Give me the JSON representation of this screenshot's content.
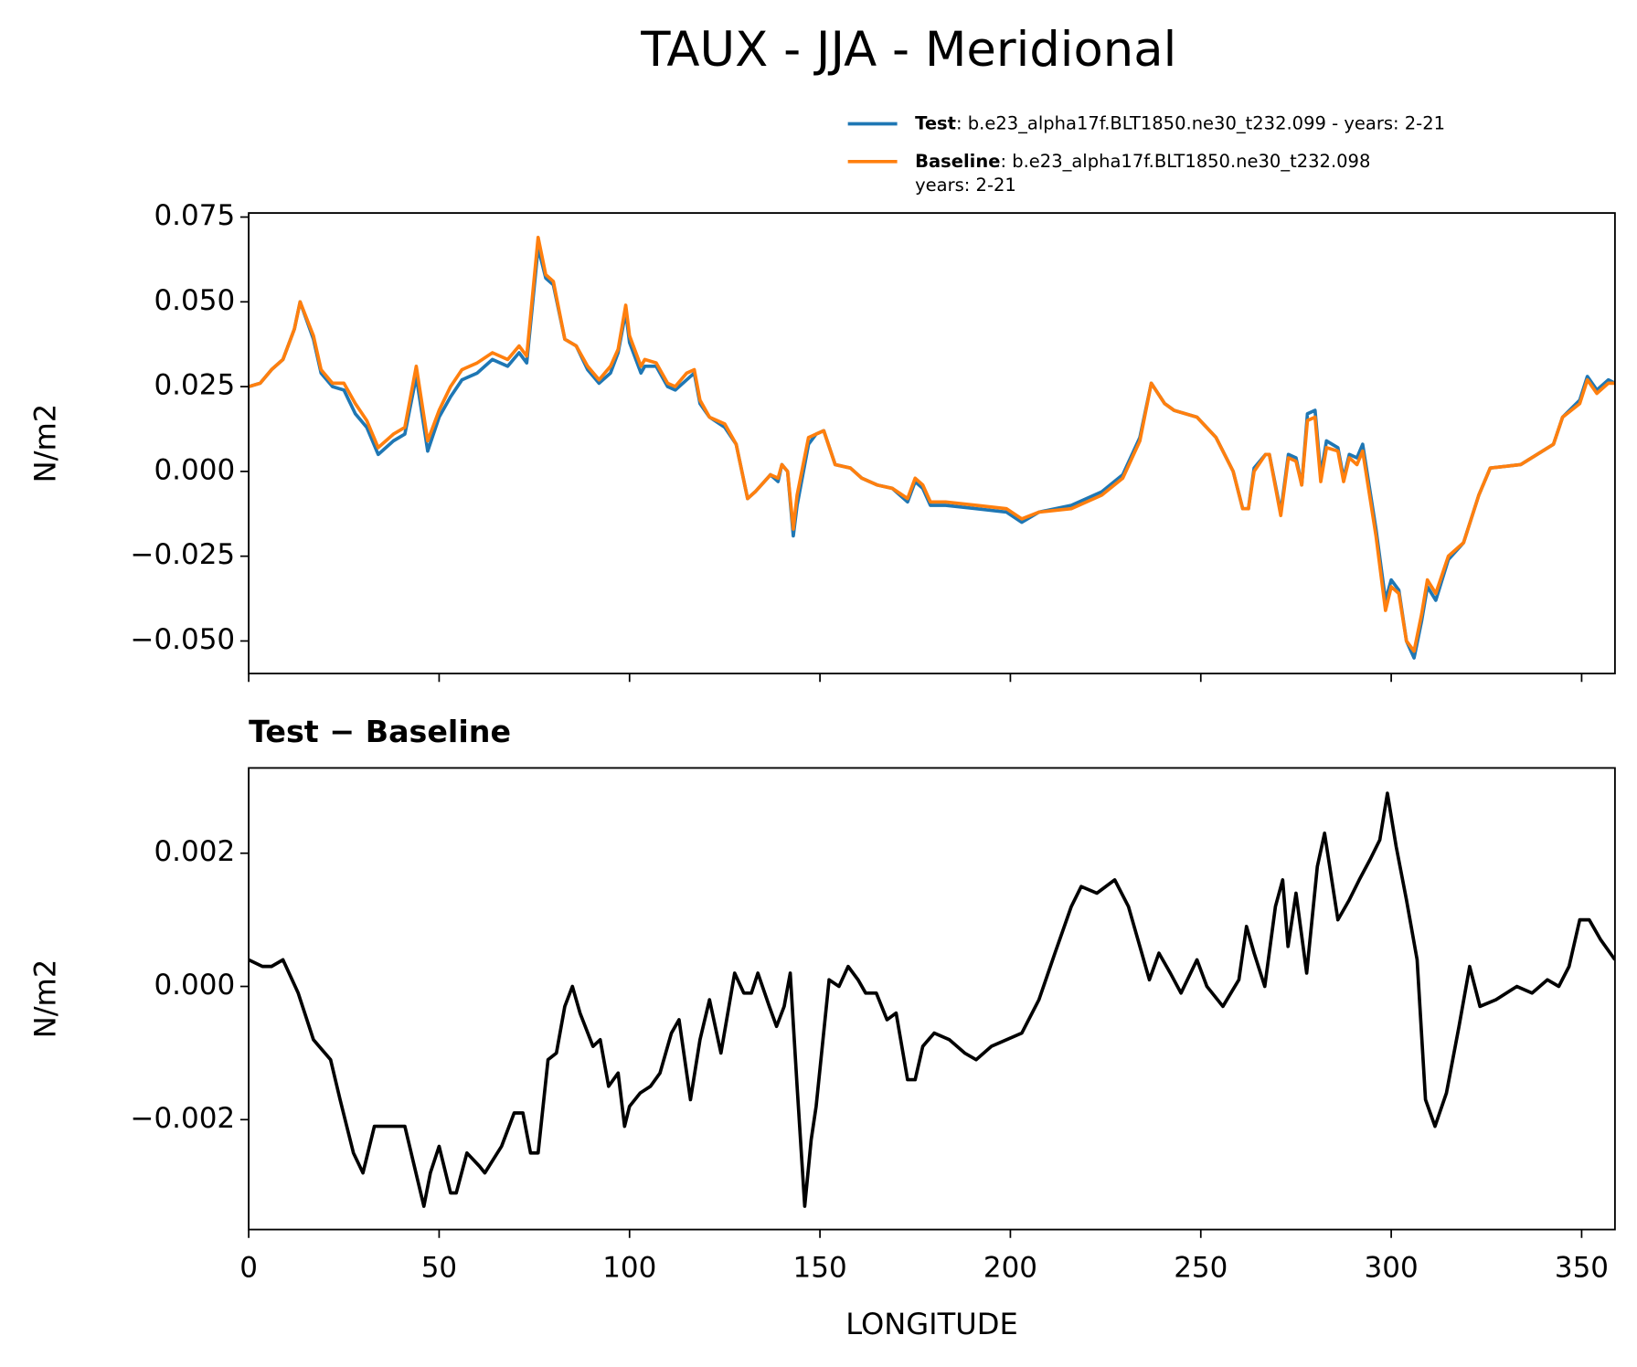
{
  "title": "TAUX - JJA - Meridional",
  "chart_data": [
    {
      "type": "line",
      "ylabel": "N/m2",
      "xlim": [
        0,
        358.75
      ],
      "ylim": [
        -0.0596,
        0.0762
      ],
      "yticks": [
        {
          "value": 0.075,
          "label": "0.075"
        },
        {
          "value": 0.05,
          "label": "0.050"
        },
        {
          "value": 0.025,
          "label": "0.025"
        },
        {
          "value": 0,
          "label": "0.000"
        },
        {
          "value": -0.025,
          "label": "−0.025"
        },
        {
          "value": -0.05,
          "label": "−0.050"
        }
      ],
      "x": [
        0,
        3,
        6,
        9,
        12,
        13.5,
        17,
        19,
        22,
        25,
        28,
        31,
        34,
        38,
        41,
        44,
        47,
        50,
        53,
        56,
        60,
        64,
        68,
        71,
        73,
        76,
        78,
        80,
        83,
        86,
        89,
        92,
        95,
        97,
        99,
        100,
        103,
        104,
        107,
        110,
        112,
        115,
        117,
        118.5,
        121,
        125,
        128,
        131,
        133,
        137,
        139,
        140,
        141.5,
        143,
        144,
        147,
        149,
        151,
        154,
        158,
        161,
        165,
        169,
        173,
        175,
        177,
        179,
        183,
        191,
        199,
        203,
        207.5,
        216,
        224,
        229.5,
        234,
        237,
        240.5,
        243,
        249,
        254,
        258.5,
        261,
        262.5,
        264,
        267,
        268,
        271,
        273,
        275,
        276.5,
        278,
        280,
        281.5,
        283,
        286,
        287.5,
        289,
        291,
        292.5,
        296,
        298.5,
        300,
        302,
        304,
        306,
        308,
        309.5,
        311.7,
        315,
        319,
        323,
        326,
        334,
        342.6,
        345,
        349.5,
        351.5,
        354,
        357,
        358.75
      ],
      "series": [
        {
          "name": "Test",
          "label": [
            ": b.e23_alpha17f.BLT1850.ne30_t232.099 - years: 2-21"
          ],
          "color": "#1f77b4",
          "values": [
            0.025,
            0.026,
            0.03,
            0.033,
            0.042,
            0.05,
            0.039,
            0.029,
            0.025,
            0.024,
            0.017,
            0.013,
            0.005,
            0.009,
            0.011,
            0.028,
            0.006,
            0.016,
            0.022,
            0.027,
            0.029,
            0.033,
            0.031,
            0.035,
            0.032,
            0.066,
            0.057,
            0.055,
            0.039,
            0.037,
            0.03,
            0.026,
            0.029,
            0.035,
            0.047,
            0.038,
            0.029,
            0.031,
            0.031,
            0.025,
            0.024,
            0.027,
            0.029,
            0.02,
            0.016,
            0.013,
            0.008,
            -0.008,
            -0.006,
            -0.001,
            -0.003,
            0.002,
            0,
            -0.019,
            -0.01,
            0.008,
            0.011,
            0.012,
            0.002,
            0.001,
            -0.002,
            -0.004,
            -0.005,
            -0.009,
            -0.003,
            -0.005,
            -0.01,
            -0.01,
            -0.011,
            -0.012,
            -0.015,
            -0.012,
            -0.01,
            -0.006,
            -0.001,
            0.01,
            0.026,
            0.02,
            0.018,
            0.016,
            0.01,
            0,
            -0.011,
            -0.011,
            0.001,
            0.005,
            0.005,
            -0.012,
            0.005,
            0.004,
            -0.004,
            0.017,
            0.018,
            -0.001,
            0.009,
            0.007,
            -0.002,
            0.005,
            0.004,
            0.008,
            -0.017,
            -0.038,
            -0.032,
            -0.035,
            -0.05,
            -0.055,
            -0.044,
            -0.034,
            -0.038,
            -0.026,
            -0.021,
            -0.007,
            0.001,
            0.002,
            0.008,
            0.016,
            0.021,
            0.028,
            0.024,
            0.027,
            0.026
          ]
        },
        {
          "name": "Baseline",
          "label": [
            ": b.e23_alpha17f.BLT1850.ne30_t232.098",
            "years: 2-21"
          ],
          "color": "#ff7f0e",
          "values": [
            0.025,
            0.026,
            0.03,
            0.033,
            0.042,
            0.05,
            0.04,
            0.03,
            0.026,
            0.026,
            0.02,
            0.015,
            0.007,
            0.011,
            0.013,
            0.031,
            0.009,
            0.018,
            0.025,
            0.03,
            0.032,
            0.035,
            0.033,
            0.037,
            0.034,
            0.069,
            0.058,
            0.056,
            0.039,
            0.037,
            0.031,
            0.027,
            0.031,
            0.036,
            0.049,
            0.04,
            0.031,
            0.033,
            0.032,
            0.026,
            0.025,
            0.029,
            0.03,
            0.021,
            0.016,
            0.014,
            0.008,
            -0.008,
            -0.006,
            -0.001,
            -0.002,
            0.002,
            0,
            -0.017,
            -0.007,
            0.01,
            0.011,
            0.012,
            0.002,
            0.001,
            -0.002,
            -0.004,
            -0.005,
            -0.008,
            -0.002,
            -0.004,
            -0.009,
            -0.009,
            -0.01,
            -0.011,
            -0.014,
            -0.012,
            -0.011,
            -0.007,
            -0.002,
            0.009,
            0.026,
            0.02,
            0.018,
            0.016,
            0.01,
            0,
            -0.011,
            -0.011,
            0,
            0.005,
            0.005,
            -0.013,
            0.004,
            0.003,
            -0.004,
            0.015,
            0.016,
            -0.003,
            0.007,
            0.006,
            -0.003,
            0.004,
            0.002,
            0.006,
            -0.019,
            -0.041,
            -0.034,
            -0.036,
            -0.05,
            -0.053,
            -0.042,
            -0.032,
            -0.036,
            -0.025,
            -0.021,
            -0.007,
            0.001,
            0.002,
            0.008,
            0.016,
            0.02,
            0.027,
            0.023,
            0.026,
            0.026
          ]
        }
      ]
    },
    {
      "type": "line",
      "title": "Test − Baseline",
      "ylabel": "N/m2",
      "xlabel": "LONGITUDE",
      "color": "#000000",
      "xlim": [
        0,
        358.75
      ],
      "ylim": [
        -0.00365,
        0.00328
      ],
      "xticks": [
        0,
        50,
        100,
        150,
        200,
        250,
        300,
        350
      ],
      "yticks": [
        {
          "value": 0.002,
          "label": "0.002"
        },
        {
          "value": 0,
          "label": "0.000"
        },
        {
          "value": -0.002,
          "label": "−0.002"
        }
      ],
      "x": [
        0,
        3.6,
        6,
        9,
        13,
        17,
        21.5,
        24,
        27.5,
        30,
        33,
        38,
        41,
        43.5,
        46,
        47.7,
        50,
        53,
        54.5,
        57.3,
        60.6,
        62,
        66.4,
        69.7,
        72,
        74,
        76,
        78.6,
        80.8,
        83,
        85,
        87,
        90.4,
        92.3,
        94.5,
        97,
        98.7,
        100,
        102.8,
        105.5,
        108,
        111,
        113,
        116,
        118.5,
        121,
        124,
        127.6,
        130,
        132,
        133.7,
        136.7,
        138.6,
        140.6,
        142.2,
        144,
        146,
        147.7,
        149,
        152.4,
        155,
        157.4,
        160,
        162,
        164.8,
        167.6,
        170,
        173,
        175,
        177,
        180,
        184,
        188,
        191,
        195,
        199,
        203,
        207.5,
        211.7,
        216,
        218.6,
        222.7,
        227.4,
        231,
        234,
        236.5,
        239,
        242,
        244.8,
        249,
        251.6,
        255.8,
        260,
        262,
        264,
        266.8,
        269.6,
        271.5,
        272.9,
        275,
        277.8,
        280.6,
        282.5,
        286,
        289,
        291.6,
        294.4,
        297,
        299,
        301.3,
        304,
        306.8,
        309,
        311.5,
        314.5,
        317.8,
        320.6,
        323.3,
        327.5,
        333,
        337,
        341,
        344,
        346.7,
        349.5,
        352,
        355,
        358.75
      ],
      "values": [
        0.0004,
        0.0003,
        0.0003,
        0.0004,
        -0.0001,
        -0.0008,
        -0.0011,
        -0.0017,
        -0.0025,
        -0.0028,
        -0.0021,
        -0.0021,
        -0.0021,
        -0.0027,
        -0.0033,
        -0.0028,
        -0.0024,
        -0.0031,
        -0.0031,
        -0.0025,
        -0.0027,
        -0.0028,
        -0.0024,
        -0.0019,
        -0.0019,
        -0.0025,
        -0.0025,
        -0.0011,
        -0.001,
        -0.0003,
        0,
        -0.0004,
        -0.0009,
        -0.0008,
        -0.0015,
        -0.0013,
        -0.0021,
        -0.0018,
        -0.0016,
        -0.0015,
        -0.0013,
        -0.0007,
        -0.0005,
        -0.0017,
        -0.0008,
        -0.0002,
        -0.001,
        0.0002,
        -0.0001,
        -0.0001,
        0.0002,
        -0.0003,
        -0.0006,
        -0.0003,
        0.0002,
        -0.0015,
        -0.0033,
        -0.0023,
        -0.0018,
        0.0001,
        0,
        0.0003,
        0.0001,
        -0.0001,
        -0.0001,
        -0.0005,
        -0.0004,
        -0.0014,
        -0.0014,
        -0.0009,
        -0.0007,
        -0.0008,
        -0.001,
        -0.0011,
        -0.0009,
        -0.0008,
        -0.0007,
        -0.0002,
        0.0005,
        0.0012,
        0.0015,
        0.0014,
        0.0016,
        0.0012,
        0.0006,
        0.0001,
        0.0005,
        0.0002,
        -0.0001,
        0.0004,
        0,
        -0.0003,
        0.0001,
        0.0009,
        0.0005,
        0,
        0.0012,
        0.0016,
        0.0006,
        0.0014,
        0.0002,
        0.0018,
        0.0023,
        0.001,
        0.0013,
        0.0016,
        0.0019,
        0.0022,
        0.0029,
        0.0021,
        0.0013,
        0.0004,
        -0.0017,
        -0.0021,
        -0.0016,
        -0.0006,
        0.0003,
        -0.0003,
        -0.0002,
        0,
        -0.0001,
        0.0001,
        0,
        0.0003,
        0.001,
        0.001,
        0.0007,
        0.0004
      ]
    }
  ]
}
